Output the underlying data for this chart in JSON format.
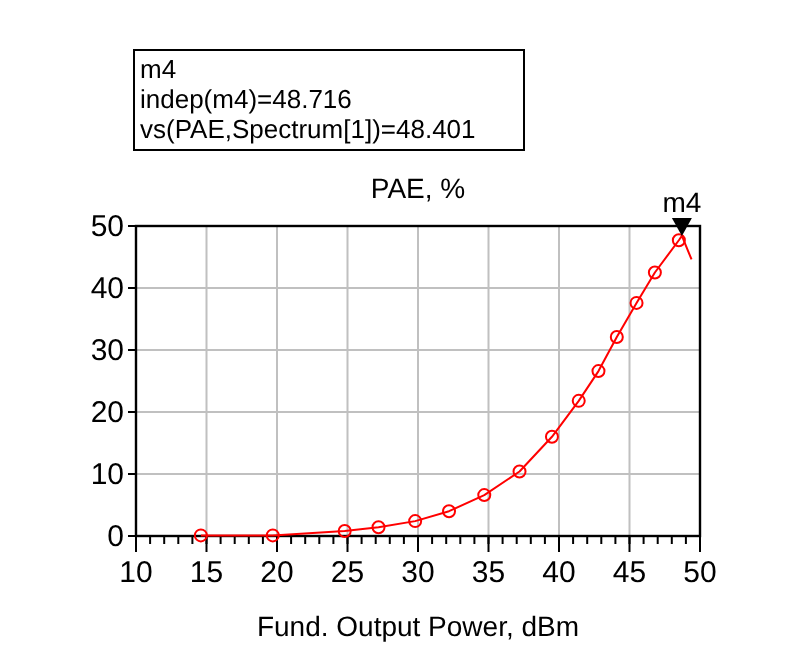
{
  "chart_data": {
    "type": "line",
    "title": "PAE, %",
    "xlabel": "Fund. Output Power, dBm",
    "xlim": [
      10,
      50
    ],
    "xticks": [
      10,
      15,
      20,
      25,
      30,
      35,
      40,
      45,
      50
    ],
    "ylim": [
      0,
      50
    ],
    "yticks": [
      0,
      10,
      20,
      30,
      40,
      50
    ],
    "grid": true,
    "annotations": [
      "m4",
      "indep(m4)=48.716",
      "vs(PAE,Spectrum[1])=48.401",
      {
        "text": "m4",
        "x": 48.716,
        "y": 48.401
      }
    ],
    "series": [
      {
        "color": "#ff0000",
        "marker": "none",
        "x": [
          14.6,
          19.7,
          24.8,
          27.2,
          29.8,
          32.2,
          34.7,
          37.2,
          39.5,
          41.4,
          42.8,
          44.1,
          45.5,
          46.8,
          48.5,
          48.716,
          49.4
        ],
        "values": [
          0.1,
          0.1,
          0.8,
          1.4,
          2.4,
          4.0,
          6.6,
          10.4,
          16.0,
          21.8,
          26.6,
          32.1,
          37.6,
          42.5,
          47.7,
          48.401,
          44.6
        ]
      },
      {
        "type": "scatter",
        "color": "#ff0000",
        "marker": "circle",
        "x": [
          14.6,
          19.7,
          24.8,
          27.2,
          29.8,
          32.2,
          34.7,
          37.2,
          39.5,
          41.4,
          42.8,
          44.1,
          45.5,
          46.8,
          48.5
        ],
        "values": [
          0.1,
          0.1,
          0.8,
          1.4,
          2.4,
          4.0,
          6.6,
          10.4,
          16.0,
          21.8,
          26.6,
          32.1,
          37.6,
          42.5,
          47.7
        ]
      }
    ]
  }
}
